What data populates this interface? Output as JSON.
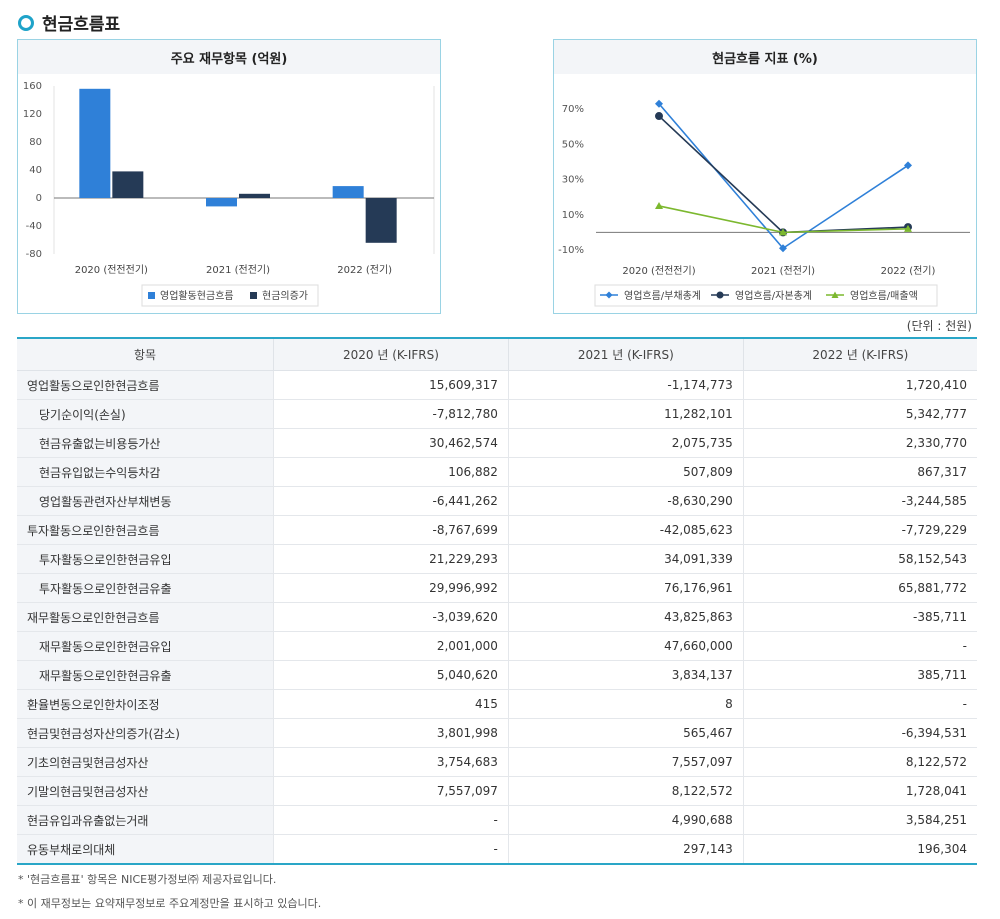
{
  "section_title": "현금흐름표",
  "unit_note": "(단위 : 천원)",
  "chart_data": [
    {
      "type": "bar",
      "title": "주요 재무항목 (억원)",
      "categories": [
        "2020 (전전전기)",
        "2021 (전전기)",
        "2022 (전기)"
      ],
      "series": [
        {
          "name": "영업활동현금흐름",
          "values": [
            156,
            -12,
            17
          ],
          "color": "#2f80d8"
        },
        {
          "name": "현금의증가",
          "values": [
            38,
            6,
            -64
          ],
          "color": "#253a56"
        }
      ],
      "yticks": [
        160,
        120,
        80,
        40,
        0,
        -40,
        -80
      ],
      "ylim": [
        -80,
        160
      ],
      "legend": "bottom"
    },
    {
      "type": "line",
      "title": "현금흐름 지표 (%)",
      "categories": [
        "2020 (전전전기)",
        "2021 (전전기)",
        "2022 (전기)"
      ],
      "series": [
        {
          "name": "영업흐름/부채총계",
          "values": [
            73,
            -9,
            38
          ],
          "color": "#2f80d8",
          "marker": "diamond"
        },
        {
          "name": "영업흐름/자본총계",
          "values": [
            66,
            0,
            3
          ],
          "color": "#253a56",
          "marker": "circle"
        },
        {
          "name": "영업흐름/매출액",
          "values": [
            15,
            0,
            2
          ],
          "color": "#7cb82f",
          "marker": "triangle"
        }
      ],
      "yticks": [
        "70%",
        "50%",
        "30%",
        "10%",
        "-10%"
      ],
      "ylim": [
        -10,
        70
      ],
      "legend": "bottom"
    },
    {
      "type": "table",
      "headers": [
        "항목",
        "2020 년 (K-IFRS)",
        "2021 년 (K-IFRS)",
        "2022 년 (K-IFRS)"
      ],
      "rows": [
        {
          "label": "영업활동으로인한현금흐름",
          "sub": false,
          "values": [
            "15,609,317",
            "-1,174,773",
            "1,720,410"
          ]
        },
        {
          "label": "당기순이익(손실)",
          "sub": true,
          "values": [
            "-7,812,780",
            "11,282,101",
            "5,342,777"
          ]
        },
        {
          "label": "현금유출없는비용등가산",
          "sub": true,
          "values": [
            "30,462,574",
            "2,075,735",
            "2,330,770"
          ]
        },
        {
          "label": "현금유입없는수익등차감",
          "sub": true,
          "values": [
            "106,882",
            "507,809",
            "867,317"
          ]
        },
        {
          "label": "영업활동관련자산부채변동",
          "sub": true,
          "values": [
            "-6,441,262",
            "-8,630,290",
            "-3,244,585"
          ]
        },
        {
          "label": "투자활동으로인한현금흐름",
          "sub": false,
          "values": [
            "-8,767,699",
            "-42,085,623",
            "-7,729,229"
          ]
        },
        {
          "label": "투자활동으로인한현금유입",
          "sub": true,
          "values": [
            "21,229,293",
            "34,091,339",
            "58,152,543"
          ]
        },
        {
          "label": "투자활동으로인한현금유출",
          "sub": true,
          "values": [
            "29,996,992",
            "76,176,961",
            "65,881,772"
          ]
        },
        {
          "label": "재무활동으로인한현금흐름",
          "sub": false,
          "values": [
            "-3,039,620",
            "43,825,863",
            "-385,711"
          ]
        },
        {
          "label": "재무활동으로인한현금유입",
          "sub": true,
          "values": [
            "2,001,000",
            "47,660,000",
            "-"
          ]
        },
        {
          "label": "재무활동으로인한현금유출",
          "sub": true,
          "values": [
            "5,040,620",
            "3,834,137",
            "385,711"
          ]
        },
        {
          "label": "환율변동으로인한차이조정",
          "sub": false,
          "values": [
            "415",
            "8",
            "-"
          ]
        },
        {
          "label": "현금및현금성자산의증가(감소)",
          "sub": false,
          "values": [
            "3,801,998",
            "565,467",
            "-6,394,531"
          ]
        },
        {
          "label": "기초의현금및현금성자산",
          "sub": false,
          "values": [
            "3,754,683",
            "7,557,097",
            "8,122,572"
          ]
        },
        {
          "label": "기말의현금및현금성자산",
          "sub": false,
          "values": [
            "7,557,097",
            "8,122,572",
            "1,728,041"
          ]
        },
        {
          "label": "현금유입과유출없는거래",
          "sub": false,
          "values": [
            "-",
            "4,990,688",
            "3,584,251"
          ]
        },
        {
          "label": "유동부채로의대체",
          "sub": false,
          "values": [
            "-",
            "297,143",
            "196,304"
          ]
        }
      ]
    }
  ],
  "notes": [
    "* '현금흐름표' 항목은 NICE평가정보㈜ 제공자료입니다.",
    "* 이 재무정보는 요약재무정보로 주요계정만을 표시하고 있습니다."
  ]
}
